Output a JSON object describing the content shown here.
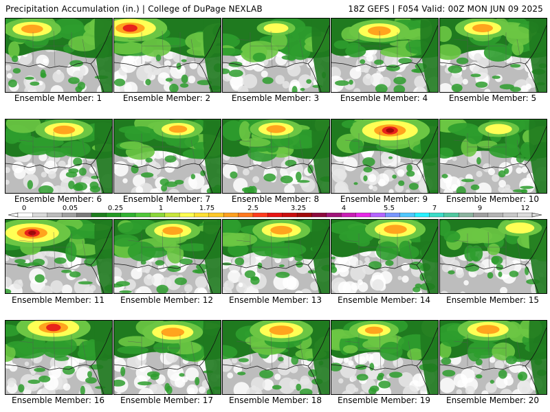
{
  "header": {
    "left_title": "Precipitation Accumulation (in.) | College of DuPage NEXLAB",
    "right_title": "18Z GEFS | F054 Valid: 00Z MON JUN 09 2025"
  },
  "caption_prefix": "Ensemble Member:",
  "members": [
    {
      "label": "Ensemble Member: 1",
      "intensity": 0.55,
      "hot_x": 0.25,
      "hot_y": 0.18
    },
    {
      "label": "Ensemble Member: 2",
      "intensity": 0.85,
      "hot_x": 0.15,
      "hot_y": 0.15
    },
    {
      "label": "Ensemble Member: 3",
      "intensity": 0.2,
      "hot_x": 0.5,
      "hot_y": 0.15
    },
    {
      "label": "Ensemble Member: 4",
      "intensity": 0.6,
      "hot_x": 0.45,
      "hot_y": 0.25
    },
    {
      "label": "Ensemble Member: 5",
      "intensity": 0.5,
      "hot_x": 0.4,
      "hot_y": 0.15
    },
    {
      "label": "Ensemble Member: 6",
      "intensity": 0.55,
      "hot_x": 0.55,
      "hot_y": 0.18
    },
    {
      "label": "Ensemble Member: 7",
      "intensity": 0.4,
      "hot_x": 0.6,
      "hot_y": 0.15
    },
    {
      "label": "Ensemble Member: 8",
      "intensity": 0.45,
      "hot_x": 0.5,
      "hot_y": 0.15
    },
    {
      "label": "Ensemble Member: 9",
      "intensity": 0.95,
      "hot_x": 0.55,
      "hot_y": 0.2
    },
    {
      "label": "Ensemble Member: 10",
      "intensity": 0.25,
      "hot_x": 0.55,
      "hot_y": 0.15
    },
    {
      "label": "Ensemble Member: 11",
      "intensity": 0.9,
      "hot_x": 0.25,
      "hot_y": 0.28
    },
    {
      "label": "Ensemble Member: 12",
      "intensity": 0.5,
      "hot_x": 0.55,
      "hot_y": 0.2
    },
    {
      "label": "Ensemble Member: 13",
      "intensity": 0.55,
      "hot_x": 0.55,
      "hot_y": 0.18
    },
    {
      "label": "Ensemble Member: 14",
      "intensity": 0.6,
      "hot_x": 0.6,
      "hot_y": 0.15
    },
    {
      "label": "Ensemble Member: 15",
      "intensity": 0.3,
      "hot_x": 0.75,
      "hot_y": 0.1
    },
    {
      "label": "Ensemble Member: 16",
      "intensity": 0.85,
      "hot_x": 0.45,
      "hot_y": 0.05
    },
    {
      "label": "Ensemble Member: 17",
      "intensity": 0.6,
      "hot_x": 0.55,
      "hot_y": 0.22
    },
    {
      "label": "Ensemble Member: 18",
      "intensity": 0.65,
      "hot_x": 0.55,
      "hot_y": 0.15
    },
    {
      "label": "Ensemble Member: 19",
      "intensity": 0.4,
      "hot_x": 0.4,
      "hot_y": 0.15
    },
    {
      "label": "Ensemble Member: 20",
      "intensity": 0.6,
      "hot_x": 0.45,
      "hot_y": 0.12
    }
  ],
  "colorbar": {
    "tick_labels": [
      "0",
      "0.05",
      "0.25",
      "1",
      "1.75",
      "2.5",
      "3.25",
      "4",
      "5.5",
      "7",
      "9",
      "12"
    ],
    "colors": [
      "#ffffff",
      "#d9d9d9",
      "#bcbcbc",
      "#a0a0a0",
      "#7a7a7a",
      "#1e7d1e",
      "#239b23",
      "#31b131",
      "#50c83a",
      "#8cd73a",
      "#c8e63c",
      "#ffff50",
      "#ffe032",
      "#ffc828",
      "#ffa01e",
      "#ff781e",
      "#ff3c1e",
      "#e61414",
      "#c80f0f",
      "#a00a0a",
      "#8c0a3c",
      "#a01478",
      "#c81eb4",
      "#e628e6",
      "#b464ff",
      "#7896ff",
      "#50c8ff",
      "#28f0ff",
      "#3cdcc8",
      "#50c8a0",
      "#8cb4a0",
      "#a0a0a0",
      "#b4b4b4",
      "#c8c8c8",
      "#dcdcdc"
    ]
  },
  "palette": {
    "gray_light": "#e6e6e6",
    "gray_mid": "#bdbdbd",
    "green_dark": "#1f7a1f",
    "green_mid": "#2e9d2e",
    "green_light": "#6cc644",
    "yellow": "#ffff55",
    "orange": "#ffa41e",
    "red": "#e8231a",
    "darkred": "#a00a0a"
  }
}
